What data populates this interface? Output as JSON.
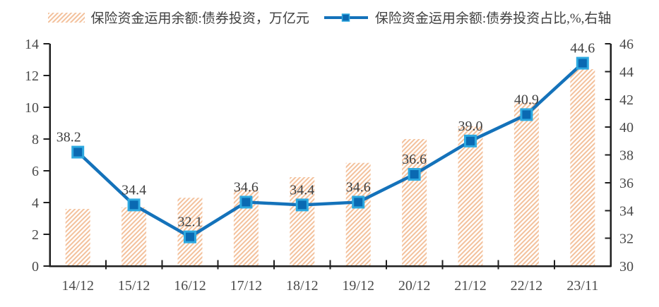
{
  "legend": {
    "bars_label": "保险资金运用余额:债券投资，万亿元",
    "line_label": "保险资金运用余额:债券投资占比,%,右轴"
  },
  "colors": {
    "background": "#FFFFFF",
    "bar_hatch": "#F3C19C",
    "line": "#1472BA",
    "marker_fill": "#0A69B2",
    "marker_edge": "#2EA9E0",
    "axis_line": "#1F1F1F",
    "tick_label": "#4A4A4A",
    "data_label": "#3F3F3F"
  },
  "chart_data": {
    "type": "combo_bar_line",
    "title": "",
    "categories": [
      "14/12",
      "15/12",
      "16/12",
      "17/12",
      "18/12",
      "19/12",
      "20/12",
      "21/12",
      "22/12",
      "23/11"
    ],
    "series": [
      {
        "name": "保险资金运用余额:债券投资，万亿元",
        "type": "bar",
        "axis": "left",
        "values": [
          3.6,
          3.7,
          4.3,
          4.8,
          5.6,
          6.5,
          8.0,
          8.8,
          10.3,
          12.4
        ]
      },
      {
        "name": "保险资金运用余额:债券投资占比,%,右轴",
        "type": "line",
        "axis": "right",
        "values": [
          38.2,
          34.4,
          32.1,
          34.6,
          34.4,
          34.6,
          36.6,
          39.0,
          40.9,
          44.6
        ],
        "data_labels": true
      }
    ],
    "left_axis": {
      "min": 0,
      "max": 14,
      "ticks": [
        0,
        2,
        4,
        6,
        8,
        10,
        12,
        14
      ]
    },
    "right_axis": {
      "min": 30,
      "max": 46,
      "ticks": [
        30,
        32,
        34,
        36,
        38,
        40,
        42,
        44,
        46
      ]
    },
    "grid": false,
    "legend_position": "top"
  }
}
